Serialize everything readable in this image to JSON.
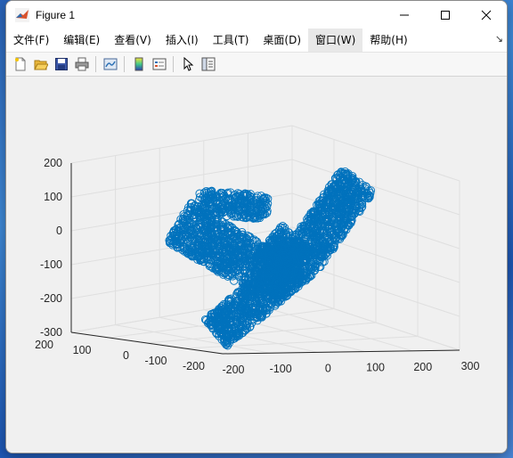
{
  "window": {
    "title": "Figure 1"
  },
  "menu": [
    "文件(F)",
    "编辑(E)",
    "查看(V)",
    "插入(I)",
    "工具(T)",
    "桌面(D)",
    "窗口(W)",
    "帮助(H)"
  ],
  "menu_more_glyph": "↘",
  "toolbar": [
    "new-figure-icon",
    "open-file-icon",
    "save-icon",
    "print-icon",
    "link-plot-icon",
    "insert-colorbar-icon",
    "insert-legend-icon",
    "pointer-icon",
    "property-inspector-icon"
  ],
  "colors": {
    "marker": "#0072bd",
    "axes_bg": "#f0f0f0",
    "grid": "#dfdfdf"
  },
  "chart_data": {
    "type": "scatter",
    "subtype": "scatter3 with circle markers",
    "series": [
      {
        "shape": "bent bar (L-shaped band)",
        "color": "#0072bd",
        "marker": "circle"
      }
    ],
    "x_ticks": [
      "-200",
      "-100",
      "0",
      "100",
      "200",
      "300"
    ],
    "y_ticks": [
      "-200",
      "-100",
      "0",
      "100",
      "200"
    ],
    "z_ticks": [
      "-300",
      "-200",
      "-100",
      "0",
      "100",
      "200"
    ],
    "xlim": [
      -200,
      300
    ],
    "ylim": [
      -200,
      200
    ],
    "zlim": [
      -300,
      200
    ],
    "grid": true,
    "box": false
  }
}
